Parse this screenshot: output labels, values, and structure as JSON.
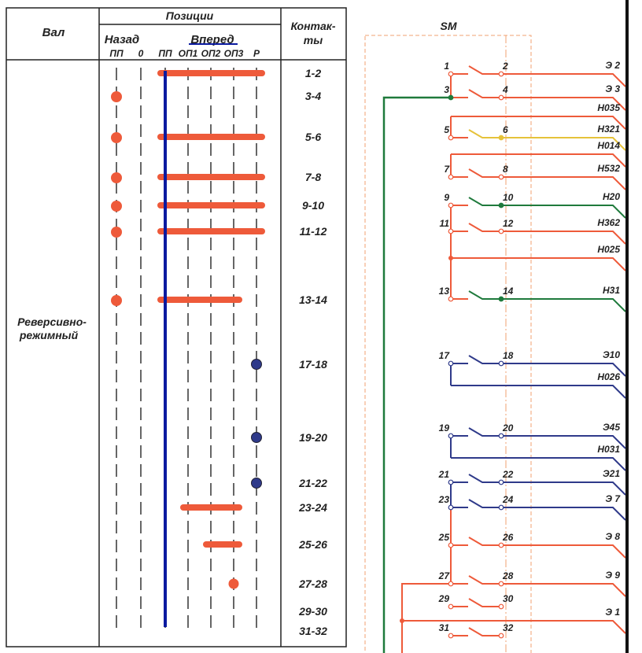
{
  "table": {
    "header_shaft": "Вал",
    "header_positions": "Позиции",
    "header_back": "Назад",
    "header_forward": "Вперед",
    "header_contacts_1": "Контак-",
    "header_contacts_2": "ты",
    "positions": [
      "ПП",
      "0",
      "ПП",
      "ОП1",
      "ОП2",
      "ОП3",
      "Р"
    ],
    "shaft_name_1": "Реверсивно-",
    "shaft_name_2": "режимный",
    "rows": [
      {
        "contacts": "1-2",
        "closed": [
          2,
          3,
          4,
          5,
          6
        ],
        "color": "red"
      },
      {
        "contacts": "3-4",
        "closed": [
          0
        ],
        "color": "red"
      },
      {
        "contacts": "5-6",
        "closed": [
          0,
          2,
          3,
          4,
          5,
          6
        ],
        "color": "red"
      },
      {
        "contacts": "7-8",
        "closed": [
          0,
          2,
          3,
          4,
          5,
          6
        ],
        "color": "red"
      },
      {
        "contacts": "9-10",
        "closed": [
          0,
          2,
          3,
          4,
          5,
          6
        ],
        "color": "red"
      },
      {
        "contacts": "11-12",
        "closed": [
          0,
          2,
          3,
          4,
          5,
          6
        ],
        "color": "red"
      },
      {
        "contacts": "13-14",
        "closed": [
          0,
          2,
          3,
          4,
          5
        ],
        "color": "red"
      },
      {
        "contacts": "17-18",
        "closed": [
          6
        ],
        "color": "blue"
      },
      {
        "contacts": "19-20",
        "closed": [
          6
        ],
        "color": "blue"
      },
      {
        "contacts": "21-22",
        "closed": [
          6
        ],
        "color": "blue"
      },
      {
        "contacts": "23-24",
        "closed": [
          3,
          4,
          5
        ],
        "color": "red"
      },
      {
        "contacts": "25-26",
        "closed": [
          4,
          5
        ],
        "color": "red"
      },
      {
        "contacts": "27-28",
        "closed": [
          5
        ],
        "color": "red"
      },
      {
        "contacts": "29-30",
        "closed": [],
        "color": "red"
      },
      {
        "contacts": "31-32",
        "closed": [],
        "color": "red"
      }
    ],
    "current_position": 2
  },
  "schematic": {
    "title": "SM",
    "contacts": [
      {
        "a": "1",
        "b": "2",
        "label": "Э 2",
        "color": "red"
      },
      {
        "a": "3",
        "b": "4",
        "label": "Э 3",
        "color": "red"
      },
      {
        "a": "5",
        "b": "6",
        "label": "Н321",
        "color": "yellow"
      },
      {
        "a": "7",
        "b": "8",
        "label": "Н532",
        "color": "red"
      },
      {
        "a": "9",
        "b": "10",
        "label": "Н20",
        "color": "green"
      },
      {
        "a": "11",
        "b": "12",
        "label": "Н362",
        "color": "red"
      },
      {
        "a": "13",
        "b": "14",
        "label": "Н31",
        "color": "green"
      },
      {
        "a": "17",
        "b": "18",
        "label": "Э10",
        "color": "blue"
      },
      {
        "a": "19",
        "b": "20",
        "label": "Э45",
        "color": "blue"
      },
      {
        "a": "21",
        "b": "22",
        "label": "Э21",
        "color": "blue"
      },
      {
        "a": "23",
        "b": "24",
        "label": "Э 7",
        "color": "blue"
      },
      {
        "a": "25",
        "b": "26",
        "label": "Э 8",
        "color": "red"
      },
      {
        "a": "27",
        "b": "28",
        "label": "Э 9",
        "color": "red"
      },
      {
        "a": "29",
        "b": "30",
        "label": "",
        "color": "red"
      },
      {
        "a": "31",
        "b": "32",
        "label": "",
        "color": "red"
      }
    ],
    "wires": [
      {
        "label": "Н035",
        "color": "red"
      },
      {
        "label": "Н014",
        "color": "red"
      },
      {
        "label": "Н025",
        "color": "red"
      },
      {
        "label": "Н026",
        "color": "blue"
      },
      {
        "label": "Н031",
        "color": "blue"
      },
      {
        "label": "Э 1",
        "color": "red"
      }
    ]
  },
  "colors": {
    "red": "#ee5a3a",
    "blue": "#2f3a8a",
    "green": "#1f7a3c",
    "yellow": "#e6c23a",
    "navy": "#0a1aa0",
    "box": "#f0a070"
  }
}
